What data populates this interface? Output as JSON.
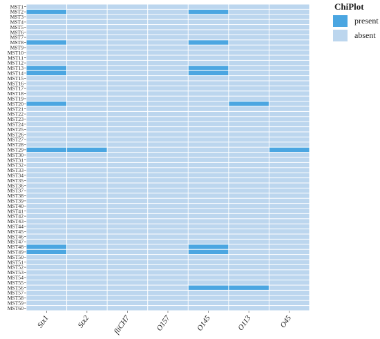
{
  "chart_data": {
    "type": "heatmap",
    "title": "",
    "xlabel": "",
    "ylabel": "",
    "columns": [
      "Stx1",
      "Stx2",
      "fliCH7",
      "O157",
      "O145",
      "O113",
      "O45"
    ],
    "rows": [
      "MST1",
      "MST2",
      "MST3",
      "MST4",
      "MST5",
      "MST6",
      "MST7",
      "MST8",
      "MST9",
      "MST10",
      "MST11",
      "MST12",
      "MST13",
      "MST14",
      "MST15",
      "MST16",
      "MST17",
      "MST18",
      "MST19",
      "MST20",
      "MST21",
      "MST22",
      "MST23",
      "MST24",
      "MST25",
      "MST26",
      "MST27",
      "MST28",
      "MST29",
      "MST30",
      "MST31",
      "MST32",
      "MST33",
      "MST34",
      "MST35",
      "MST36",
      "MST37",
      "MST38",
      "MST39",
      "MST40",
      "MST41",
      "MST42",
      "MST43",
      "MST44",
      "MST45",
      "MST46",
      "MST47",
      "MST48",
      "MST49",
      "MST50",
      "MST51",
      "MST52",
      "MST53",
      "MST54",
      "MST55",
      "MST56",
      "MST57",
      "MST58",
      "MST59",
      "MST60"
    ],
    "present": {
      "MST2": [
        "Stx1",
        "O145"
      ],
      "MST8": [
        "Stx1",
        "O145"
      ],
      "MST13": [
        "Stx1",
        "O145"
      ],
      "MST14": [
        "Stx1",
        "O145"
      ],
      "MST20": [
        "Stx1",
        "O113"
      ],
      "MST29": [
        "Stx1",
        "Stx2",
        "O45"
      ],
      "MST48": [
        "Stx1",
        "O145"
      ],
      "MST49": [
        "Stx1",
        "O145"
      ],
      "MST56": [
        "O145",
        "O113"
      ]
    },
    "legend": {
      "title": "ChiPlot",
      "position": "top-right",
      "items": [
        {
          "label": "present",
          "color": "#4ba6e1"
        },
        {
          "label": "absent",
          "color": "#bcd6ee"
        }
      ]
    }
  }
}
